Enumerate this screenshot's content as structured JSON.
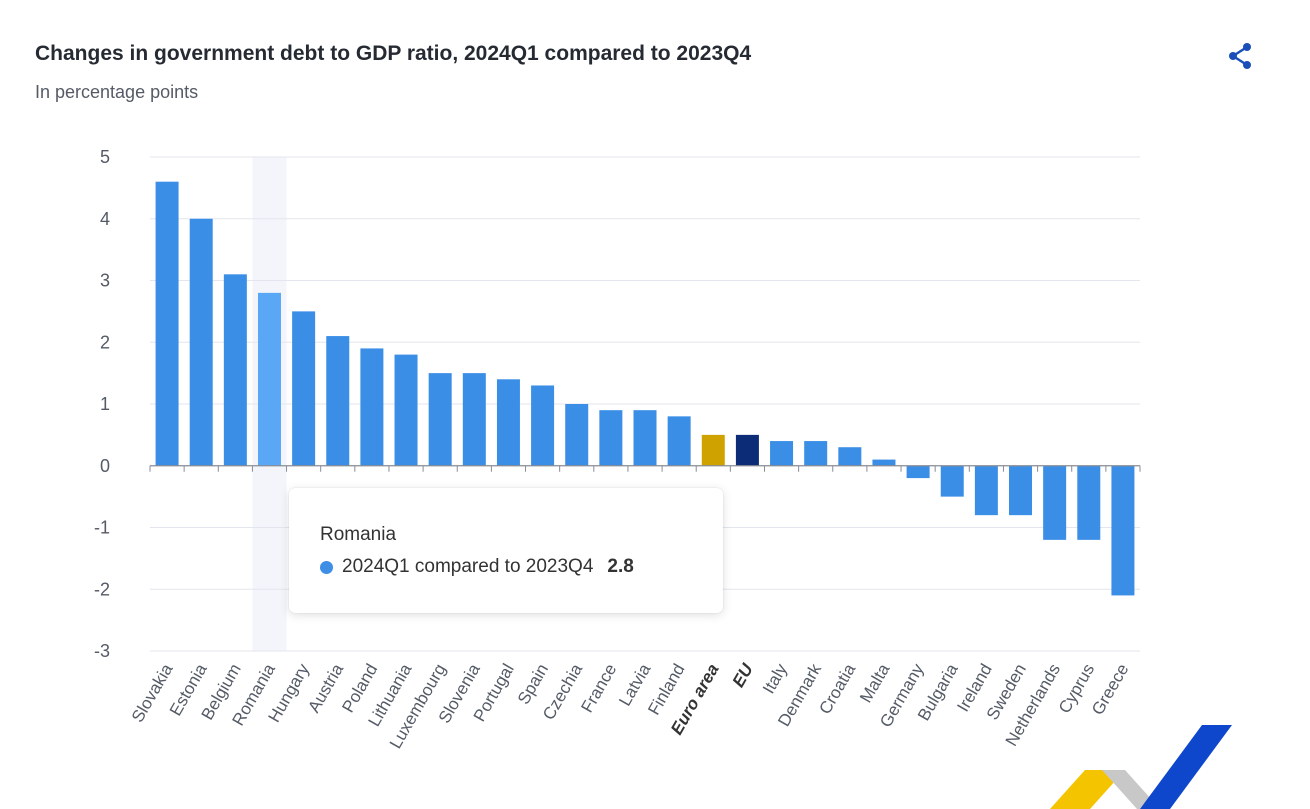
{
  "header": {
    "title": "Changes in government debt to GDP ratio, 2024Q1 compared to 2023Q4",
    "subtitle": "In percentage points"
  },
  "share": {
    "icon": "share-icon"
  },
  "tooltip": {
    "country": "Romania",
    "series_label": "2024Q1 compared to 2023Q4",
    "value": "2.8"
  },
  "colors": {
    "bar": "#3a8ee6",
    "highlight_bar": "#5aa8f5",
    "euro_area": "#cfa200",
    "eu": "#0d2c78",
    "grid": "#e3e6ee",
    "axis_text": "#555b66"
  },
  "chart_data": {
    "type": "bar",
    "categories": [
      "Slovakia",
      "Estonia",
      "Belgium",
      "Romania",
      "Hungary",
      "Austria",
      "Poland",
      "Lithuania",
      "Luxembourg",
      "Slovenia",
      "Portugal",
      "Spain",
      "Czechia",
      "France",
      "Latvia",
      "Finland",
      "Euro area",
      "EU",
      "Italy",
      "Denmark",
      "Croatia",
      "Malta",
      "Germany",
      "Bulgaria",
      "Ireland",
      "Sweden",
      "Netherlands",
      "Cyprus",
      "Greece"
    ],
    "series": [
      {
        "values": [
          4.6,
          4.0,
          3.1,
          2.8,
          2.5,
          2.1,
          1.9,
          1.8,
          1.5,
          1.5,
          1.4,
          1.3,
          1.0,
          0.9,
          0.9,
          0.8,
          0.5,
          0.5,
          0.4,
          0.4,
          0.3,
          0.1,
          -0.2,
          -0.5,
          -0.8,
          -0.8,
          -1.2,
          -1.2,
          -2.1
        ]
      }
    ],
    "bold_categories": [
      "Euro area",
      "EU"
    ],
    "highlighted_category": "Romania",
    "ylim": [
      -3,
      5
    ],
    "yticks": [
      "5",
      "4",
      "3",
      "2",
      "1",
      "0",
      "-1",
      "-2",
      "-3"
    ],
    "grid": true,
    "legend": "none"
  }
}
